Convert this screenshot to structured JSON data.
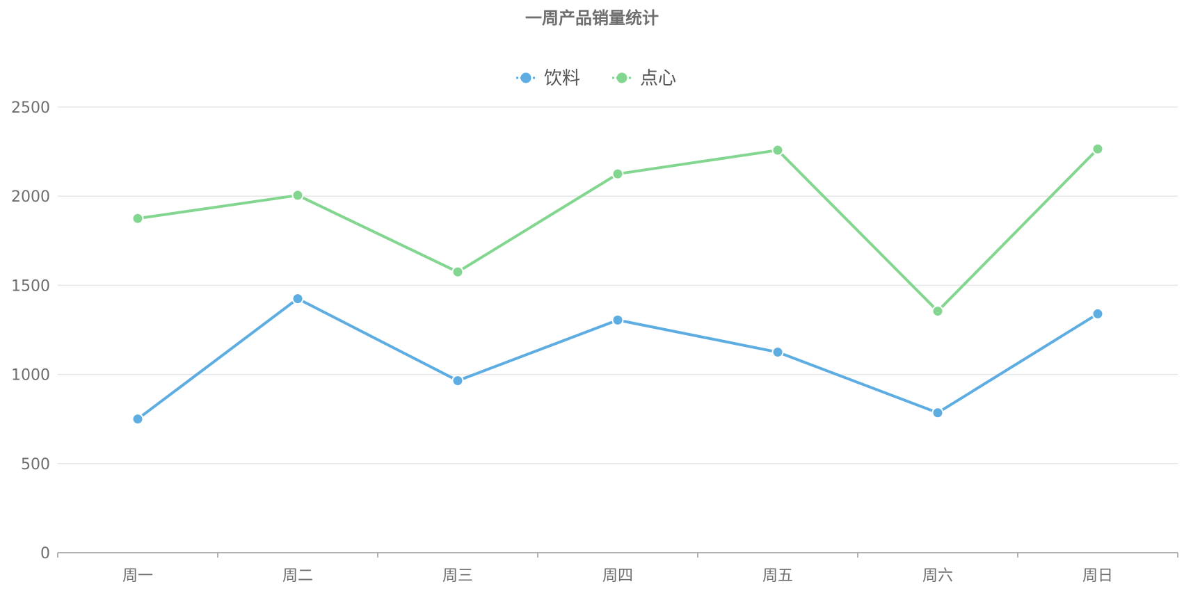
{
  "chart_data": {
    "type": "line",
    "title": "一周产品销量统计",
    "categories": [
      "周一",
      "周二",
      "周三",
      "周四",
      "周五",
      "周六",
      "周日"
    ],
    "ylim": [
      0,
      2500
    ],
    "yticks": [
      0,
      500,
      1000,
      1500,
      2000,
      2500
    ],
    "grid": true,
    "legend_position": "top-center",
    "series": [
      {
        "name": "饮料",
        "color": "#5dade2",
        "values": [
          750,
          1425,
          965,
          1305,
          1125,
          785,
          1340
        ]
      },
      {
        "name": "点心",
        "color": "#82d68f",
        "values": [
          1875,
          2005,
          1575,
          2125,
          2258,
          1355,
          2265
        ]
      }
    ]
  }
}
